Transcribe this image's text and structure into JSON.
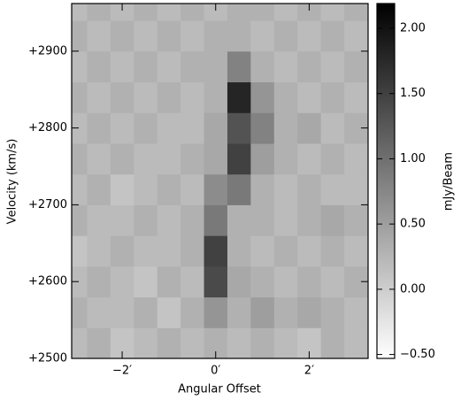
{
  "chart_data": {
    "type": "heatmap",
    "xlabel": "Angular Offset",
    "ylabel": "Velocity (km/s)",
    "x": [
      -3,
      -2.5,
      -2,
      -1.5,
      -1,
      -0.5,
      0,
      0.5,
      1,
      1.5,
      2,
      2.5,
      3
    ],
    "y": [
      2520,
      2560,
      2600,
      2640,
      2680,
      2720,
      2760,
      2800,
      2840,
      2880,
      2920,
      2960
    ],
    "z": [
      [
        0.2,
        0.3,
        0.1,
        0.2,
        0.3,
        0.2,
        0.3,
        0.2,
        0.3,
        0.2,
        0.1,
        0.3,
        0.2
      ],
      [
        0.3,
        0.2,
        0.2,
        0.3,
        0.1,
        0.3,
        0.6,
        0.3,
        0.5,
        0.3,
        0.4,
        0.3,
        0.2
      ],
      [
        0.2,
        0.3,
        0.2,
        0.1,
        0.3,
        0.2,
        1.4,
        0.4,
        0.3,
        0.2,
        0.3,
        0.2,
        0.3
      ],
      [
        0.1,
        0.2,
        0.3,
        0.2,
        0.2,
        0.3,
        1.5,
        0.3,
        0.2,
        0.3,
        0.2,
        0.3,
        0.2
      ],
      [
        0.3,
        0.2,
        0.2,
        0.3,
        0.2,
        0.3,
        0.9,
        0.3,
        0.3,
        0.2,
        0.3,
        0.4,
        0.3
      ],
      [
        0.2,
        0.3,
        0.1,
        0.2,
        0.3,
        0.2,
        0.7,
        0.9,
        0.3,
        0.2,
        0.3,
        0.2,
        0.2
      ],
      [
        0.3,
        0.2,
        0.3,
        0.2,
        0.2,
        0.3,
        0.4,
        1.5,
        0.5,
        0.3,
        0.2,
        0.3,
        0.2
      ],
      [
        0.2,
        0.3,
        0.2,
        0.3,
        0.2,
        0.2,
        0.4,
        1.3,
        0.8,
        0.3,
        0.4,
        0.2,
        0.3
      ],
      [
        0.3,
        0.2,
        0.3,
        0.2,
        0.3,
        0.2,
        0.3,
        1.8,
        0.6,
        0.3,
        0.2,
        0.3,
        0.2
      ],
      [
        0.2,
        0.3,
        0.2,
        0.3,
        0.2,
        0.3,
        0.3,
        0.8,
        0.3,
        0.2,
        0.3,
        0.2,
        0.3
      ],
      [
        0.3,
        0.2,
        0.3,
        0.2,
        0.3,
        0.2,
        0.3,
        0.3,
        0.2,
        0.3,
        0.2,
        0.3,
        0.2
      ],
      [
        0.2,
        0.3,
        0.2,
        0.3,
        0.2,
        0.3,
        0.2,
        0.3,
        0.3,
        0.2,
        0.3,
        0.2,
        0.3
      ]
    ],
    "xlim": [
      -3.08,
      3.26
    ],
    "ylim": [
      2500,
      2962
    ],
    "xticks": [
      {
        "value": -2,
        "label": "−2′"
      },
      {
        "value": 0,
        "label": "0′"
      },
      {
        "value": 2,
        "label": "2′"
      }
    ],
    "yticks": [
      {
        "value": 2500,
        "label": "+2500"
      },
      {
        "value": 2600,
        "label": "+2600"
      },
      {
        "value": 2700,
        "label": "+2700"
      },
      {
        "value": 2800,
        "label": "+2800"
      },
      {
        "value": 2900,
        "label": "+2900"
      }
    ],
    "colorbar": {
      "label": "mJy/Beam",
      "clim": [
        -0.53,
        2.19
      ],
      "ticks": [
        {
          "value": -0.5,
          "label": "−0.50"
        },
        {
          "value": 0,
          "label": "0.00"
        },
        {
          "value": 0.5,
          "label": "0.50"
        },
        {
          "value": 1,
          "label": "1.00"
        },
        {
          "value": 1.5,
          "label": "1.50"
        },
        {
          "value": 2,
          "label": "2.00"
        }
      ]
    }
  }
}
